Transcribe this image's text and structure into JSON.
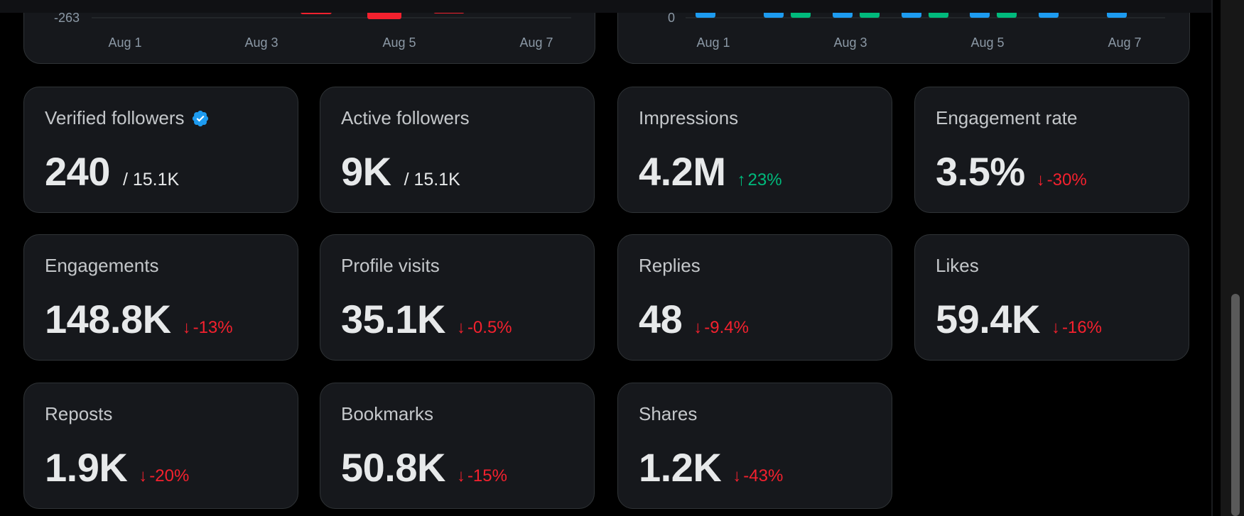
{
  "left_chart": {
    "y_tick": "-263",
    "x_ticks": [
      "Aug 1",
      "Aug 3",
      "Aug 5",
      "Aug 7"
    ],
    "bar_color": "#f4212e"
  },
  "right_chart": {
    "y_tick": "0",
    "x_ticks": [
      "Aug 1",
      "Aug 3",
      "Aug 5",
      "Aug 7"
    ],
    "series_colors": [
      "#1d9bf0",
      "#00ba7c"
    ]
  },
  "metrics": [
    {
      "label": "Verified followers",
      "value": "240",
      "sub": "/ 15.1K",
      "verified": true
    },
    {
      "label": "Active followers",
      "value": "9K",
      "sub": "/ 15.1K"
    },
    {
      "label": "Impressions",
      "value": "4.2M",
      "change": "23%",
      "direction": "up"
    },
    {
      "label": "Engagement rate",
      "value": "3.5%",
      "change": "-30%",
      "direction": "down"
    },
    {
      "label": "Engagements",
      "value": "148.8K",
      "change": "-13%",
      "direction": "down"
    },
    {
      "label": "Profile visits",
      "value": "35.1K",
      "change": "-0.5%",
      "direction": "down"
    },
    {
      "label": "Replies",
      "value": "48",
      "change": "-9.4%",
      "direction": "down"
    },
    {
      "label": "Likes",
      "value": "59.4K",
      "change": "-16%",
      "direction": "down"
    },
    {
      "label": "Reposts",
      "value": "1.9K",
      "change": "-20%",
      "direction": "down"
    },
    {
      "label": "Bookmarks",
      "value": "50.8K",
      "change": "-15%",
      "direction": "down"
    },
    {
      "label": "Shares",
      "value": "1.2K",
      "change": "-43%",
      "direction": "down"
    }
  ],
  "colors": {
    "up": "#00ba7c",
    "down": "#f4212e",
    "verified": "#1d9bf0"
  },
  "icons": {
    "up": "arrow-up-icon",
    "down": "arrow-down-icon",
    "verified": "verified-badge-icon"
  }
}
